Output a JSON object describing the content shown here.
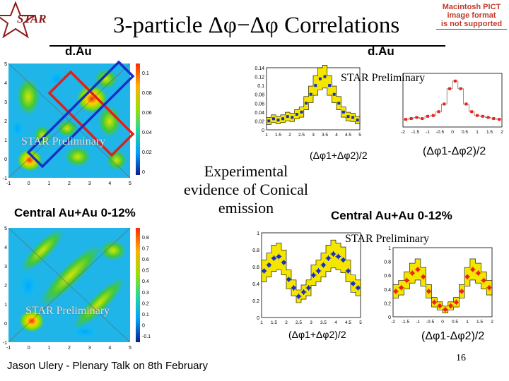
{
  "logo": {
    "text": "STAR"
  },
  "title": "3-particle Δφ−Δφ Correlations",
  "pict_notice": [
    "Macintosh PICT",
    "image format",
    "is not supported"
  ],
  "labels": {
    "dau_left": "d.Au",
    "dau_right": "d.Au",
    "central_left": "Central Au+Au 0-12%",
    "central_right": "Central Au+Au 0-12%",
    "prelim_top_right": "STAR Preliminary",
    "prelim_top_left": "STAR Preliminary",
    "prelim_mid_right": "STAR Preliminary",
    "prelim_bottom_left": "STAR Preliminary",
    "sum_axis_top": "(Δφ1+Δφ2)/2",
    "diff_axis_top": "(Δφ1-Δφ2)/2",
    "sum_axis_bottom": "(Δφ1+Δφ2)/2",
    "diff_axis_bottom": "(Δφ1-Δφ2)/2"
  },
  "center_text": [
    "Experimental",
    "evidence of Conical",
    "emission"
  ],
  "footer": "Jason Ulery - Plenary Talk on 8th February",
  "page_number": "16",
  "colors": {
    "title_rule": "#000000",
    "box_red": "#e0201b",
    "box_blue": "#1530c8",
    "band_yellow": "#f5e600",
    "points_blue": "#1a2fbf",
    "points_red": "#e8241a"
  },
  "chart_data": [
    {
      "type": "heatmap",
      "name": "dAu 2D",
      "x_ticks": [
        "-1",
        "0",
        "1",
        "2",
        "3",
        "4",
        "5"
      ],
      "y_ticks": [
        "5",
        "4",
        "3",
        "2",
        "1",
        "0",
        "-1"
      ],
      "colorbar_ticks": [
        "0.1",
        "0.08",
        "0.06",
        "0.04",
        "0.02",
        "0"
      ]
    },
    {
      "type": "line",
      "name": "dAu sum projection",
      "y_ticks": [
        "0.14",
        "0.12",
        "0.1",
        "0.08",
        "0.06",
        "0.04",
        "0.02",
        "0"
      ],
      "x_ticks": [
        "1",
        "1.5",
        "2",
        "2.5",
        "3",
        "3.5",
        "4",
        "4.5",
        "5"
      ],
      "values": [
        0.02,
        0.025,
        0.022,
        0.025,
        0.03,
        0.028,
        0.035,
        0.04,
        0.06,
        0.08,
        0.1,
        0.115,
        0.12,
        0.1,
        0.08,
        0.06,
        0.04,
        0.03,
        0.028,
        0.022
      ]
    },
    {
      "type": "line",
      "name": "dAu diff projection",
      "x_ticks": [
        "-2",
        "-1.5",
        "-1",
        "-0.5",
        "0",
        "0.5",
        "1",
        "1.5",
        "2"
      ],
      "values": [
        0.02,
        0.022,
        0.025,
        0.022,
        0.028,
        0.03,
        0.04,
        0.06,
        0.1,
        0.12,
        0.1,
        0.06,
        0.04,
        0.03,
        0.028,
        0.025,
        0.022,
        0.02
      ]
    },
    {
      "type": "heatmap",
      "name": "AuAu 2D",
      "x_ticks": [
        "-1",
        "0",
        "1",
        "2",
        "3",
        "4",
        "5"
      ],
      "y_ticks": [
        "5",
        "4",
        "3",
        "2",
        "1",
        "0",
        "-1"
      ],
      "colorbar_ticks": [
        "0.8",
        "0.7",
        "0.6",
        "0.5",
        "0.4",
        "0.3",
        "0.2",
        "0.1",
        "0",
        "-0.1"
      ]
    },
    {
      "type": "line",
      "name": "AuAu sum projection",
      "y_ticks": [
        "1",
        "0.8",
        "0.6",
        "0.4",
        "0.2",
        "0"
      ],
      "x_ticks": [
        "1",
        "1.5",
        "2",
        "2.5",
        "3",
        "3.5",
        "4",
        "4.5",
        "5"
      ],
      "values": [
        0.55,
        0.62,
        0.7,
        0.72,
        0.65,
        0.45,
        0.35,
        0.25,
        0.3,
        0.35,
        0.5,
        0.55,
        0.62,
        0.7,
        0.75,
        0.72,
        0.68,
        0.55,
        0.4,
        0.35
      ]
    },
    {
      "type": "line",
      "name": "AuAu diff projection",
      "y_ticks": [
        "1",
        "0.8",
        "0.6",
        "0.4",
        "0.2",
        "0"
      ],
      "x_ticks": [
        "-2",
        "-1.5",
        "-1",
        "-0.5",
        "0",
        "0.5",
        "1",
        "1.5",
        "2"
      ],
      "values": [
        0.35,
        0.4,
        0.5,
        0.6,
        0.65,
        0.55,
        0.35,
        0.2,
        0.15,
        0.1,
        0.15,
        0.2,
        0.35,
        0.55,
        0.65,
        0.6,
        0.5,
        0.4
      ]
    }
  ]
}
